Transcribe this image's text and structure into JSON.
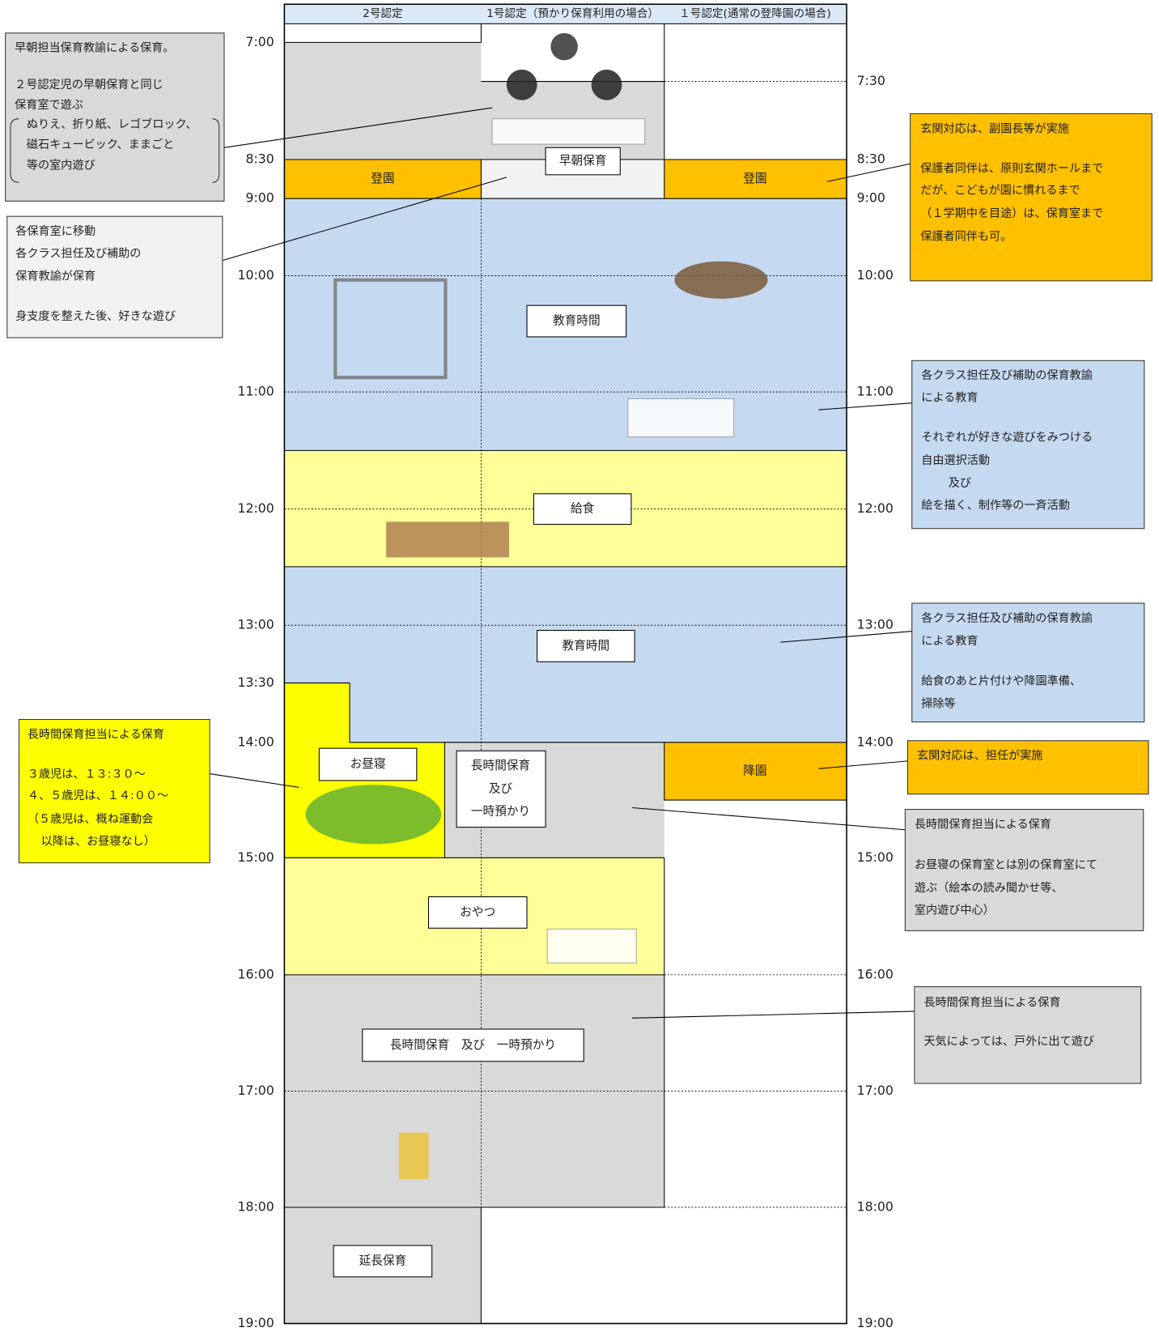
{
  "header": {
    "columns": [
      "2号認定",
      "1号認定（預かり保育利用の場合）",
      "１号認定(通常の登降園の場合)"
    ]
  },
  "time_labels_left": [
    "7:00",
    "8:30",
    "9:00",
    "10:00",
    "11:00",
    "12:00",
    "13:00",
    "13:30",
    "14:00",
    "15:00",
    "16:00",
    "17:00",
    "18:00",
    "19:00"
  ],
  "time_labels_right": [
    "7:30",
    "8:30",
    "9:00",
    "10:00",
    "11:00",
    "12:00",
    "13:00",
    "14:00",
    "15:00",
    "16:00",
    "17:00",
    "18:00",
    "19:00"
  ],
  "blocks": {
    "arrival_2": "登園",
    "early_care": "早朝保育",
    "arrival_1": "登園",
    "education_am": "教育時間",
    "lunch": "給食",
    "education_pm": "教育時間",
    "nap": "お昼寝",
    "long_care_lines": [
      "長時間保育",
      "及び",
      "一時預かり"
    ],
    "departure": "降園",
    "snack": "おやつ",
    "long_care_evening": "長時間保育　及び　一時預かり",
    "extended": "延長保育"
  },
  "notes": [
    {
      "lines": [
        "早朝担当保育教諭による保育。",
        "２号認定児の早朝保育と同じ",
        "保育室で遊ぶ",
        "ぬりえ、折り紙、レゴブロック、",
        "磁石キュービック、ままごと",
        "等の室内遊び"
      ]
    },
    {
      "lines": [
        "各保育室に移動",
        "各クラス担任及び補助の",
        "保育教諭が保育",
        "身支度を整えた後、好きな遊び"
      ]
    },
    {
      "lines": [
        "玄関対応は、副園長等が実施",
        "保護者同伴は、原則玄関ホールまで",
        "だが、こどもが園に慣れるまで",
        "（１学期中を目途）は、保育室まで",
        "保護者同伴も可。"
      ]
    },
    {
      "lines": [
        "各クラス担任及び補助の保育教諭",
        "による教育",
        "それぞれが好きな遊びをみつける",
        "自由選択活動",
        "及び",
        "絵を描く、制作等の一斉活動"
      ]
    },
    {
      "lines": [
        "各クラス担任及び補助の保育教諭",
        "による教育",
        "給食のあと片付けや降園準備、",
        "掃除等"
      ]
    },
    {
      "lines": [
        "長時間保育担当による保育",
        "３歳児は、１３:３０～",
        "４、５歳児は、１４:００～",
        "（５歳児は、概ね運動会",
        "以降は、お昼寝なし）"
      ]
    },
    {
      "lines": [
        "玄関対応は、担任が実施"
      ]
    },
    {
      "lines": [
        "長時間保育担当による保育",
        "お昼寝の保育室とは別の保育室にて",
        "遊ぶ（絵本の読み聞かせ等、",
        "室内遊び中心）"
      ]
    },
    {
      "lines": [
        "長時間保育担当による保育",
        "天気によっては、戸外に出て遊び"
      ]
    }
  ]
}
